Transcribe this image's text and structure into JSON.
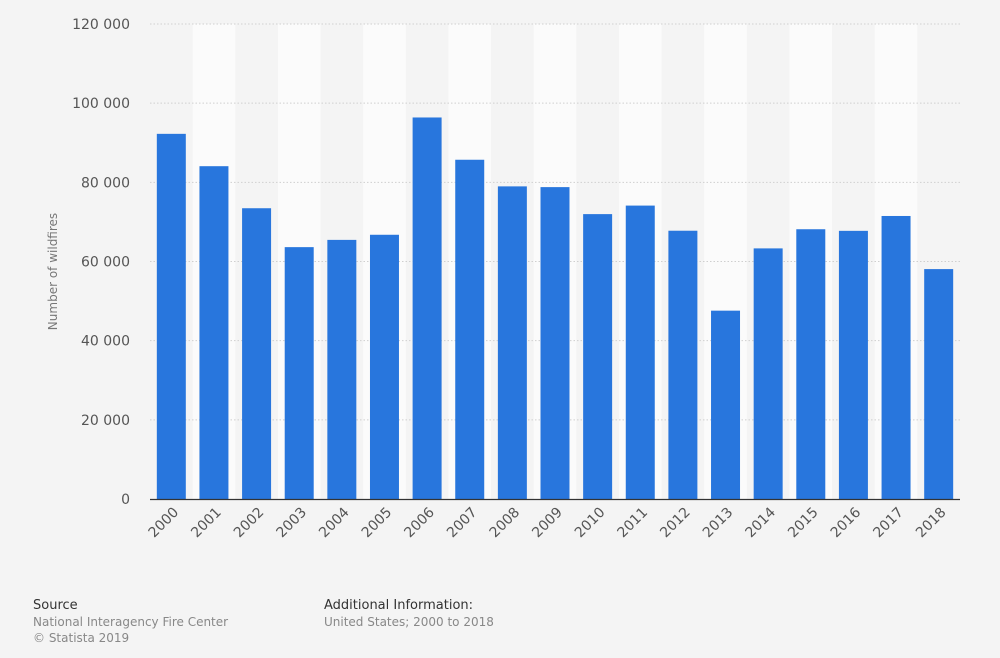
{
  "chart_data": {
    "type": "bar",
    "title": "",
    "xlabel": "",
    "ylabel": "Number of wildfires",
    "ylim": [
      0,
      120000
    ],
    "yticks": [
      0,
      20000,
      40000,
      60000,
      80000,
      100000,
      120000
    ],
    "ytick_labels": [
      "0",
      "20 000",
      "40 000",
      "60 000",
      "80 000",
      "100 000",
      "120 000"
    ],
    "categories": [
      "2000",
      "2001",
      "2002",
      "2003",
      "2004",
      "2005",
      "2006",
      "2007",
      "2008",
      "2009",
      "2010",
      "2011",
      "2012",
      "2013",
      "2014",
      "2015",
      "2016",
      "2017",
      "2018"
    ],
    "values": [
      92250,
      84079,
      73457,
      63629,
      65461,
      66753,
      96385,
      85705,
      78979,
      78792,
      71971,
      74126,
      67774,
      47579,
      63312,
      68151,
      67743,
      71499,
      58083
    ],
    "grid": true,
    "legend": "none",
    "bar_color": "#2876dd"
  },
  "footer": {
    "source_title": "Source",
    "source_line1": "National Interagency Fire Center",
    "source_line2": "© Statista 2019",
    "info_title": "Additional Information:",
    "info_line1": "United States; 2000 to 2018"
  }
}
